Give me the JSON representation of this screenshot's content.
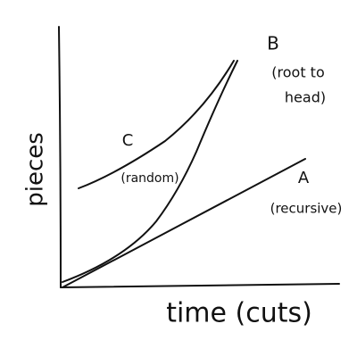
{
  "axes": {
    "y_label": "pieces",
    "x_label": "time (cuts)"
  },
  "curves": [
    {
      "letter": "A",
      "label": "(recursive)"
    },
    {
      "letter": "B",
      "label_lines": [
        "(root to",
        "head)"
      ]
    },
    {
      "letter": "C",
      "label": "(random)"
    }
  ]
}
